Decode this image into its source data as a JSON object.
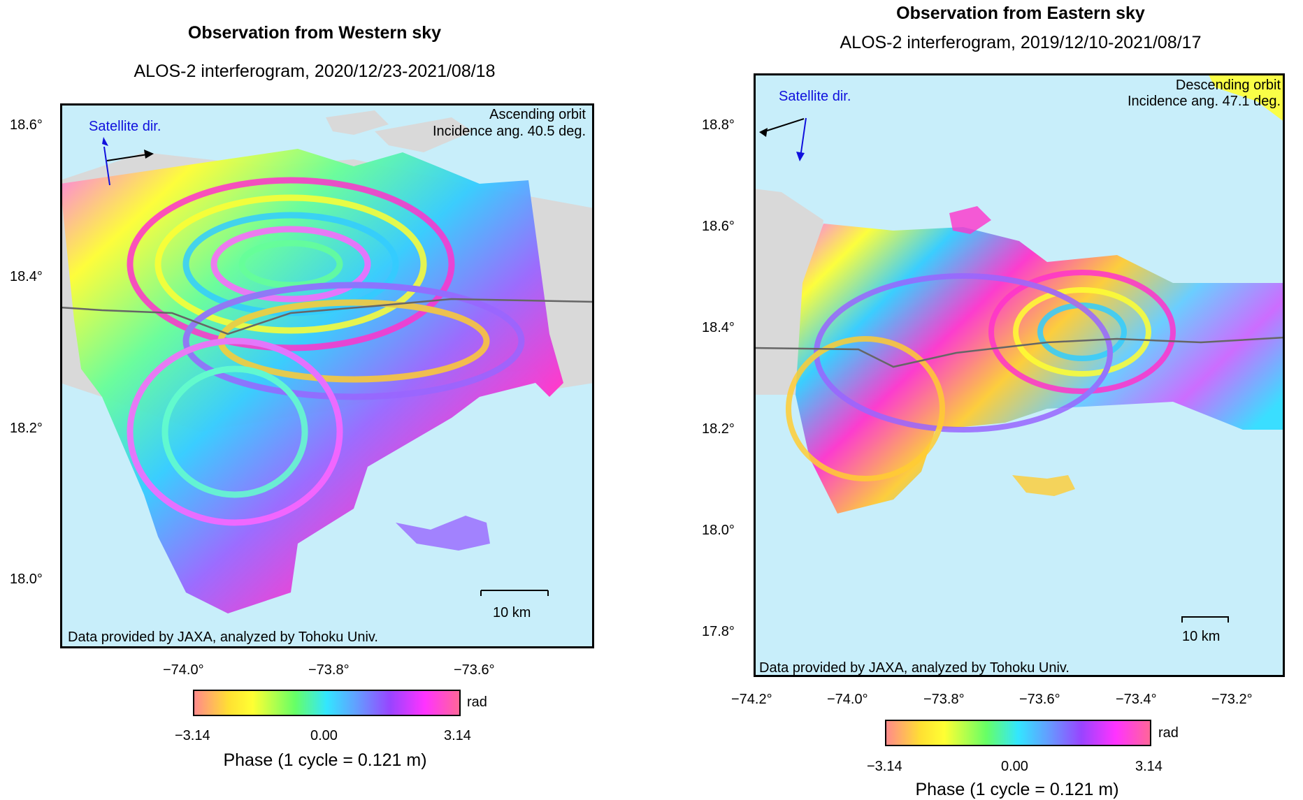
{
  "left_panel": {
    "title": "Observation from Western sky",
    "subtitle": "ALOS-2 interferogram, 2020/12/23-2021/08/18",
    "orbit": "Ascending orbit",
    "incidence": "Incidence ang. 40.5 deg.",
    "satellite_label": "Satellite dir.",
    "lat_ticks": [
      "18.6°",
      "18.4°",
      "18.2°",
      "18.0°"
    ],
    "lon_ticks": [
      "−74.0°",
      "−73.8°",
      "−73.6°"
    ],
    "scale_label": "10 km",
    "credit": "Data provided by JAXA, analyzed by Tohoku Univ.",
    "colorbar": {
      "min": "−3.14",
      "mid": "0.00",
      "max": "3.14",
      "unit": "rad",
      "caption": "Phase (1 cycle = 0.121 m)"
    }
  },
  "right_panel": {
    "title": "Observation from Eastern sky",
    "subtitle": "ALOS-2 interferogram, 2019/12/10-2021/08/17",
    "orbit": "Descending orbit",
    "incidence": "Incidence ang. 47.1 deg.",
    "satellite_label": "Satellite dir.",
    "lat_ticks": [
      "18.8°",
      "18.6°",
      "18.4°",
      "18.2°",
      "18.0°",
      "17.8°"
    ],
    "lon_ticks": [
      "−74.2°",
      "−74.0°",
      "−73.8°",
      "−73.6°",
      "−73.4°",
      "−73.2°"
    ],
    "scale_label": "10 km",
    "credit": "Data provided by JAXA, analyzed by Tohoku Univ.",
    "colorbar": {
      "min": "−3.14",
      "mid": "0.00",
      "max": "3.14",
      "unit": "rad",
      "caption": "Phase (1 cycle = 0.121 m)"
    }
  },
  "colors": {
    "sea": "#c8eefa",
    "land": "#d9d9d9",
    "satellite_text": "#1010dd",
    "fault_line": "#666666"
  }
}
